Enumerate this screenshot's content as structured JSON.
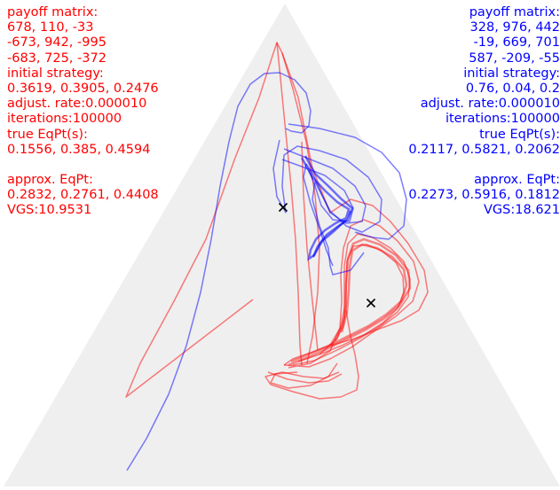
{
  "chart_data": {
    "type": "line",
    "title": "",
    "colors": {
      "triangle": "#efefef",
      "series_a": "#ff0000",
      "series_b": "#0000ff",
      "equilibrium_marker": "#000000"
    },
    "series": [
      {
        "color": "#ff0000",
        "legend_lines": [
          "payoff matrix:",
          "678, 110, -33",
          "-673, 942, -995",
          "-683, 725, -372",
          "initial strategy:",
          "0.3619, 0.3905, 0.2476",
          "adjust. rate:0.000010",
          "iterations:100000",
          "true EqPt(s):",
          "0.1556, 0.385, 0.4594",
          "",
          "approx. EqPt:",
          "0.2832, 0.2761, 0.4408",
          "VGS:10.9531"
        ],
        "true_eq_point": [
          0.1556,
          0.385,
          0.4594
        ]
      },
      {
        "color": "#0000ff",
        "legend_lines": [
          "payoff matrix:",
          "328, 976, 442",
          "-19, 669, 701",
          "587, -209, -55",
          "initial strategy:",
          "0.76, 0.04, 0.2",
          "adjust. rate:0.000010",
          "iterations:100000",
          "true EqPt(s):",
          "0.2117, 0.5821, 0.2062",
          "",
          "approx. EqPt:",
          "0.2273, 0.5916, 0.1812",
          "VGS:18.621"
        ],
        "true_eq_point": [
          0.2117,
          0.5821,
          0.2062
        ]
      }
    ]
  }
}
